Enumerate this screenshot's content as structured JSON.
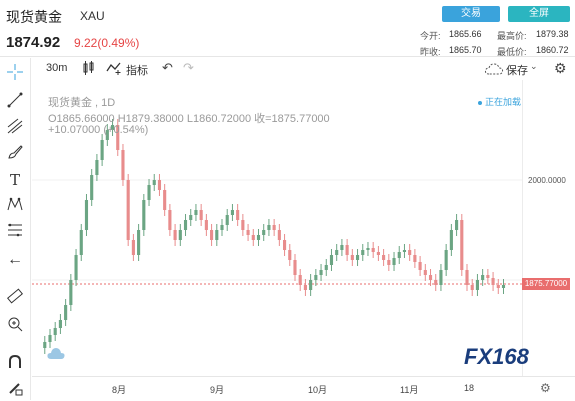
{
  "header": {
    "name": "现货黄金",
    "code": "XAU",
    "price": "1874.92",
    "change": "9.22(0.49%)",
    "buttons": {
      "trade": "交易",
      "fullscreen": "全屏"
    },
    "quotes": {
      "today_open_label": "今开:",
      "today_open": "1865.66",
      "high_label": "最高价:",
      "high": "1879.38",
      "prev_close_label": "昨收:",
      "prev_close": "1865.70",
      "low_label": "最低价:",
      "low": "1860.72"
    }
  },
  "toolbar": {
    "interval": "30m",
    "indicators_label": "指标",
    "save_label": "保存"
  },
  "chart": {
    "legend_title": "现货黄金 , 1D",
    "ohlc": "O1865.66000 H1879.38000 L1860.72000 收=1875.77000",
    "delta": "+10.07000 (+0.54%)",
    "loading": "正在加载",
    "y_tick": "2000.0000",
    "last_price_tag": "1875.77000",
    "x_labels": [
      "8月",
      "9月",
      "10月",
      "11月",
      "18"
    ],
    "up_color": "#6ba583",
    "down_color": "#e88c8c"
  },
  "chart_data": {
    "type": "candlestick",
    "series": "daily",
    "last_close": 1875.77,
    "y_tick_labels": [
      "2000.0000"
    ],
    "x_tick_labels": [
      "8月",
      "9月",
      "10月",
      "11月",
      "18"
    ]
  },
  "logo": {
    "text": "FX168"
  }
}
